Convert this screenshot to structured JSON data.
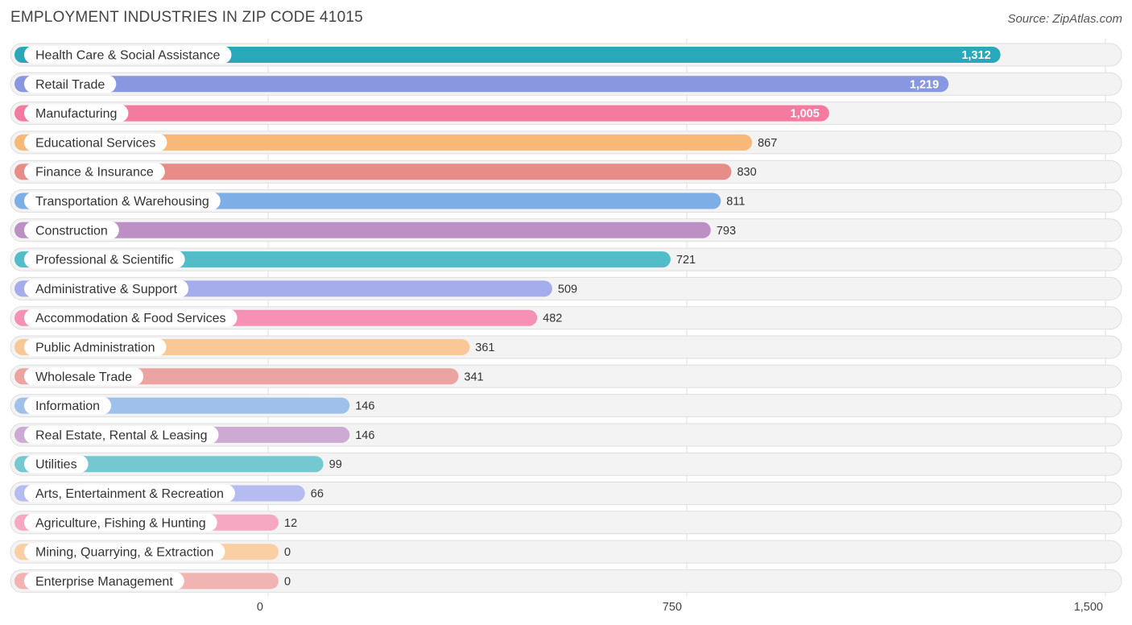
{
  "header": {
    "title": "EMPLOYMENT INDUSTRIES IN ZIP CODE 41015",
    "source": "Source: ZipAtlas.com"
  },
  "chart_data": {
    "type": "bar",
    "orientation": "horizontal",
    "title": "EMPLOYMENT INDUSTRIES IN ZIP CODE 41015",
    "xlabel": "",
    "ylabel": "",
    "xlim": [
      0,
      1500
    ],
    "ticks": [
      {
        "value": 0,
        "label": "0"
      },
      {
        "value": 750,
        "label": "750"
      },
      {
        "value": 1500,
        "label": "1,500"
      }
    ],
    "grid": true,
    "categories": [
      "Health Care & Social Assistance",
      "Retail Trade",
      "Manufacturing",
      "Educational Services",
      "Finance & Insurance",
      "Transportation & Warehousing",
      "Construction",
      "Professional & Scientific",
      "Administrative & Support",
      "Accommodation & Food Services",
      "Public Administration",
      "Wholesale Trade",
      "Information",
      "Real Estate, Rental & Leasing",
      "Utilities",
      "Arts, Entertainment & Recreation",
      "Agriculture, Fishing & Hunting",
      "Mining, Quarrying, & Extraction",
      "Enterprise Management"
    ],
    "values": [
      1312,
      1219,
      1005,
      867,
      830,
      811,
      793,
      721,
      509,
      482,
      361,
      341,
      146,
      146,
      99,
      66,
      12,
      0,
      0
    ],
    "value_labels": [
      "1,312",
      "1,219",
      "1,005",
      "867",
      "830",
      "811",
      "793",
      "721",
      "509",
      "482",
      "361",
      "341",
      "146",
      "146",
      "99",
      "66",
      "12",
      "0",
      "0"
    ],
    "colors": [
      "#28a8b8",
      "#8898e0",
      "#f47aa0",
      "#f8b878",
      "#e88c88",
      "#7eaee6",
      "#bc90c4",
      "#52bcc8",
      "#a4acec",
      "#f690b4",
      "#f9c896",
      "#eca4a2",
      "#9fc0ea",
      "#ccaad4",
      "#74c8d2",
      "#b4bcf0",
      "#f6a8c2",
      "#fbcfa4",
      "#f2b4b2"
    ]
  }
}
